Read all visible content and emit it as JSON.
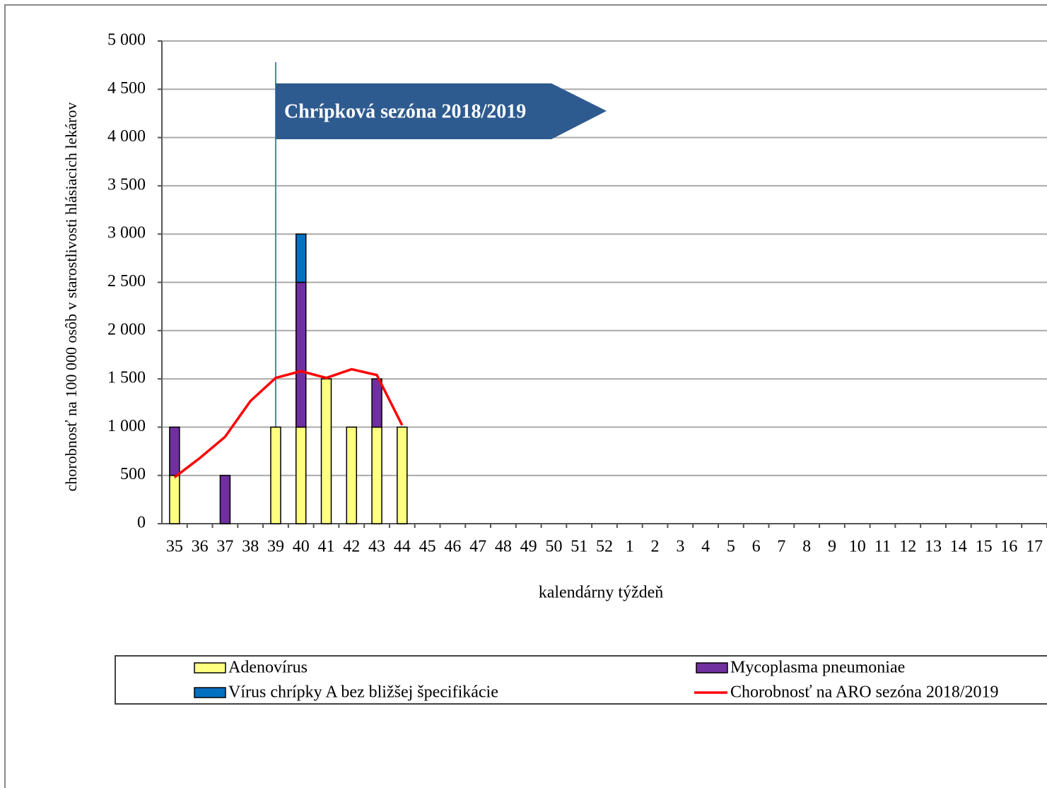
{
  "chart_data": {
    "type": "stacked-bar-line",
    "annotation": "Chrípková sezóna 2018/2019",
    "y_label": "chorobnosť na 100 000 osôb v starostlivosti hlásiacich lekárov",
    "x_label": "kalendárny týždeň",
    "categories": [
      "35",
      "36",
      "37",
      "38",
      "39",
      "40",
      "41",
      "42",
      "43",
      "44",
      "45",
      "46",
      "47",
      "48",
      "49",
      "50",
      "51",
      "52",
      "1",
      "2",
      "3",
      "4",
      "5",
      "6",
      "7",
      "8",
      "9",
      "10",
      "11",
      "12",
      "13",
      "14",
      "15",
      "16",
      "17"
    ],
    "series": [
      {
        "name": "Adenovírus",
        "kind": "bar",
        "color": "#ffff80",
        "values": [
          500,
          null,
          null,
          null,
          1000,
          1000,
          1500,
          1000,
          1000,
          1000,
          null,
          null,
          null,
          null,
          null,
          null,
          null,
          null,
          null,
          null,
          null,
          null,
          null,
          null,
          null,
          null,
          null,
          null,
          null,
          null,
          null,
          null,
          null,
          null,
          null
        ]
      },
      {
        "name": "Mycoplasma pneumoniae",
        "kind": "bar",
        "color": "#7030a0",
        "values": [
          500,
          null,
          500,
          null,
          null,
          1500,
          null,
          null,
          500,
          null,
          null,
          null,
          null,
          null,
          null,
          null,
          null,
          null,
          null,
          null,
          null,
          null,
          null,
          null,
          null,
          null,
          null,
          null,
          null,
          null,
          null,
          null,
          null,
          null,
          null
        ]
      },
      {
        "name": "Vírus chrípky A bez bližšej špecifikácie",
        "kind": "bar",
        "color": "#0070c0",
        "values": [
          null,
          null,
          null,
          null,
          null,
          500,
          null,
          null,
          null,
          null,
          null,
          null,
          null,
          null,
          null,
          null,
          null,
          null,
          null,
          null,
          null,
          null,
          null,
          null,
          null,
          null,
          null,
          null,
          null,
          null,
          null,
          null,
          null,
          null,
          null
        ]
      },
      {
        "name": "Chorobnosť na ARO sezóna 2018/2019",
        "kind": "line",
        "color": "#ff0000",
        "values": [
          480,
          680,
          900,
          1270,
          1510,
          1580,
          1510,
          1600,
          1540,
          1020,
          null,
          null,
          null,
          null,
          null,
          null,
          null,
          null,
          null,
          null,
          null,
          null,
          null,
          null,
          null,
          null,
          null,
          null,
          null,
          null,
          null,
          null,
          null,
          null,
          null
        ]
      }
    ],
    "ylim": [
      0,
      5000
    ],
    "yticks": [
      0,
      500,
      {
        "value": 1000,
        "label": "1 000"
      },
      {
        "value": 1500,
        "label": "1 500"
      },
      {
        "value": 2000,
        "label": "2 000"
      },
      {
        "value": 2500,
        "label": "2 500"
      },
      {
        "value": 3000,
        "label": "3 000"
      },
      {
        "value": 3500,
        "label": "3 500"
      },
      {
        "value": 4000,
        "label": "4 000"
      },
      {
        "value": 4500,
        "label": "4 500"
      },
      {
        "value": 5000,
        "label": "5 000"
      }
    ],
    "grid": true
  }
}
